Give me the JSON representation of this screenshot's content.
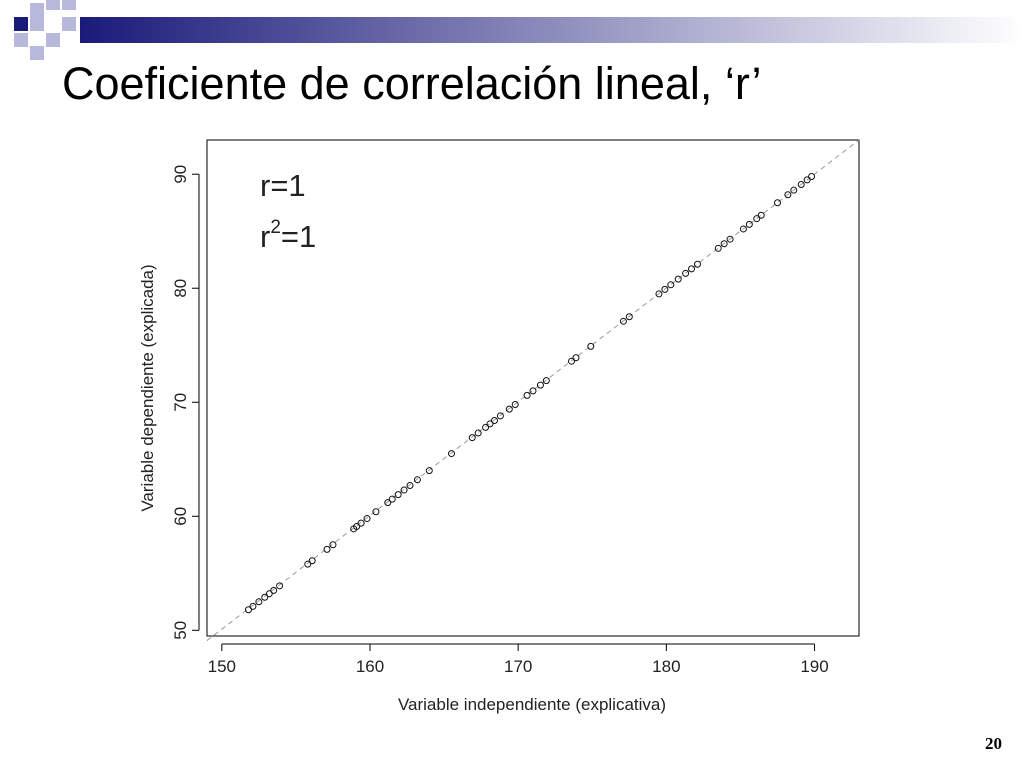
{
  "slide": {
    "title": "Coeficiente de correlación lineal, ‘r’",
    "page_number": "20"
  },
  "colors": {
    "accent_dark": "#1a1a7a",
    "accent_light": "#b8b8dc",
    "band_end": "#ffffff"
  },
  "chart_data": {
    "type": "scatter",
    "xlabel": "Variable independiente (explicativa)",
    "ylabel": "Variable dependiente (explicada)",
    "xlim": [
      149,
      193
    ],
    "ylim": [
      49.5,
      93
    ],
    "xticks": [
      150,
      160,
      170,
      180,
      190
    ],
    "yticks": [
      50,
      60,
      70,
      80,
      90
    ],
    "annotations": {
      "r_text": "r=1",
      "r2_base": "r",
      "r2_exp": "2",
      "r2_rest": "=1"
    },
    "reference_line": {
      "style": "dashed",
      "from": [
        149,
        49.1
      ],
      "to": [
        193,
        93
      ]
    },
    "points": [
      [
        151.8,
        51.8
      ],
      [
        152.1,
        52.1
      ],
      [
        152.5,
        52.5
      ],
      [
        152.9,
        52.9
      ],
      [
        153.2,
        53.2
      ],
      [
        153.5,
        53.5
      ],
      [
        153.9,
        53.9
      ],
      [
        155.8,
        55.8
      ],
      [
        156.1,
        56.1
      ],
      [
        157.1,
        57.1
      ],
      [
        157.5,
        57.5
      ],
      [
        158.9,
        58.9
      ],
      [
        159.1,
        59.1
      ],
      [
        159.4,
        59.4
      ],
      [
        159.8,
        59.8
      ],
      [
        160.4,
        60.4
      ],
      [
        161.2,
        61.2
      ],
      [
        161.5,
        61.5
      ],
      [
        161.9,
        61.9
      ],
      [
        162.3,
        62.3
      ],
      [
        162.7,
        62.7
      ],
      [
        163.2,
        63.2
      ],
      [
        164.0,
        64.0
      ],
      [
        165.5,
        65.5
      ],
      [
        166.9,
        66.9
      ],
      [
        167.3,
        67.3
      ],
      [
        167.8,
        67.8
      ],
      [
        168.1,
        68.1
      ],
      [
        168.4,
        68.4
      ],
      [
        168.8,
        68.8
      ],
      [
        169.4,
        69.4
      ],
      [
        169.8,
        69.8
      ],
      [
        170.6,
        70.6
      ],
      [
        171.0,
        71.0
      ],
      [
        171.5,
        71.5
      ],
      [
        171.9,
        71.9
      ],
      [
        173.6,
        73.6
      ],
      [
        173.9,
        73.9
      ],
      [
        174.9,
        74.9
      ],
      [
        177.1,
        77.1
      ],
      [
        177.5,
        77.5
      ],
      [
        179.5,
        79.5
      ],
      [
        179.9,
        79.9
      ],
      [
        180.3,
        80.3
      ],
      [
        180.8,
        80.8
      ],
      [
        181.3,
        81.3
      ],
      [
        181.7,
        81.7
      ],
      [
        182.1,
        82.1
      ],
      [
        183.5,
        83.5
      ],
      [
        183.9,
        83.9
      ],
      [
        184.3,
        84.3
      ],
      [
        185.2,
        85.2
      ],
      [
        185.6,
        85.6
      ],
      [
        186.1,
        86.1
      ],
      [
        186.4,
        86.4
      ],
      [
        187.5,
        87.5
      ],
      [
        188.2,
        88.2
      ],
      [
        188.6,
        88.6
      ],
      [
        189.1,
        89.1
      ],
      [
        189.5,
        89.5
      ],
      [
        189.8,
        89.8
      ]
    ]
  }
}
